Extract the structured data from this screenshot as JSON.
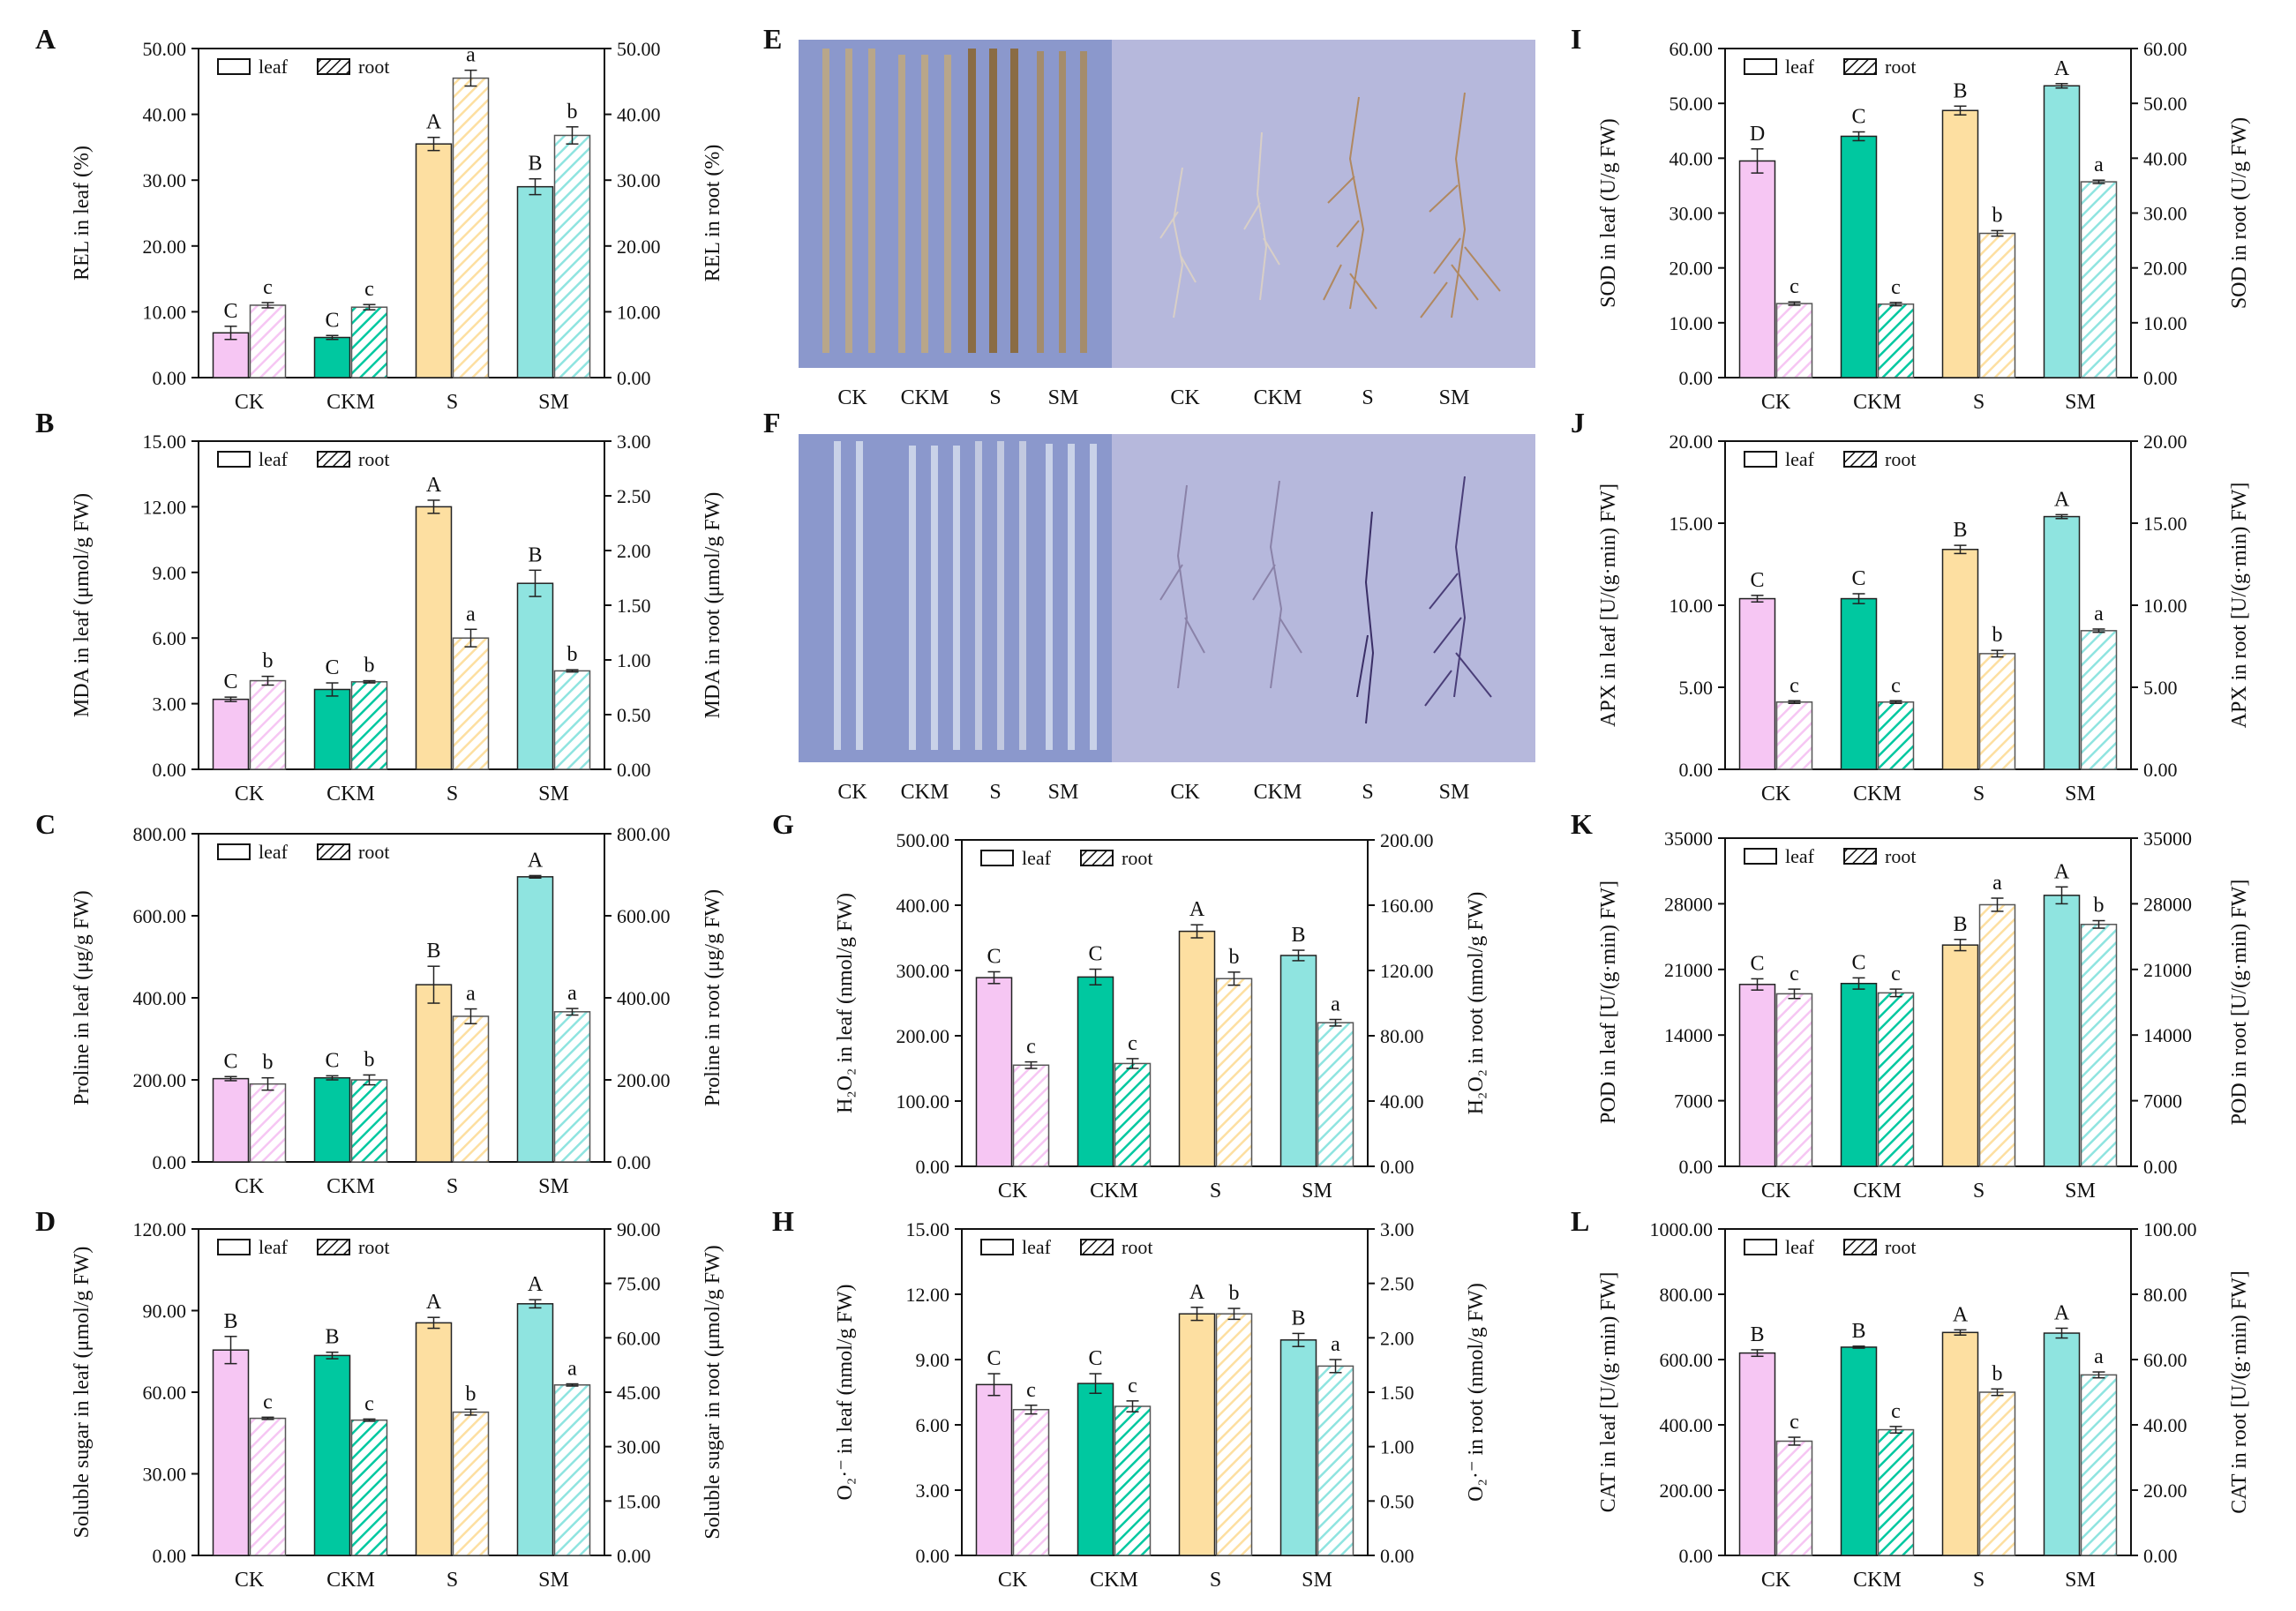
{
  "colors": {
    "CK": "#f6c6f3",
    "CKM": "#00c8a0",
    "S": "#fddfa1",
    "SM": "#8fe4e0",
    "axis": "#111111",
    "photo_bg": "#8b98cc",
    "photo_bg_root": "#b6b8dc"
  },
  "legend": {
    "leaf": "leaf",
    "root": "root"
  },
  "categories": [
    "CK",
    "CKM",
    "S",
    "SM"
  ],
  "chart_data": [
    {
      "panel": "A",
      "type": "bar",
      "ylabel_left": "REL in leaf (%)",
      "ylabel_right": "REL in root (%)",
      "ylim_left": [
        0,
        50
      ],
      "ylim_right": [
        0,
        50
      ],
      "ticks_left": [
        "0.00",
        "10.00",
        "20.00",
        "30.00",
        "40.00",
        "50.00"
      ],
      "ticks_right": [
        "0.00",
        "10.00",
        "20.00",
        "30.00",
        "40.00",
        "50.00"
      ],
      "series": [
        {
          "name": "leaf",
          "values": [
            6.8,
            6.1,
            35.5,
            29.0
          ],
          "errors": [
            1.0,
            0.3,
            1.0,
            1.2
          ],
          "letters": [
            "C",
            "C",
            "A",
            "B"
          ]
        },
        {
          "name": "root",
          "values": [
            11.0,
            10.7,
            45.5,
            36.8
          ],
          "errors": [
            0.4,
            0.4,
            1.2,
            1.3
          ],
          "letters": [
            "c",
            "c",
            "a",
            "b"
          ]
        }
      ]
    },
    {
      "panel": "B",
      "type": "bar",
      "ylabel_left": "MDA in leaf (μmol/g FW)",
      "ylabel_right": "MDA in root (μmol/g FW)",
      "ylim_left": [
        0,
        15
      ],
      "ylim_right": [
        0,
        3
      ],
      "ticks_left": [
        "0.00",
        "3.00",
        "6.00",
        "9.00",
        "12.00",
        "15.00"
      ],
      "ticks_right": [
        "0.00",
        "0.50",
        "1.00",
        "1.50",
        "2.00",
        "2.50",
        "3.00"
      ],
      "series": [
        {
          "name": "leaf",
          "values": [
            3.2,
            3.65,
            12.0,
            8.5
          ],
          "errors": [
            0.1,
            0.3,
            0.3,
            0.6
          ],
          "letters": [
            "C",
            "C",
            "A",
            "B"
          ]
        },
        {
          "name": "root",
          "values": [
            0.81,
            0.8,
            1.2,
            0.9
          ],
          "errors": [
            0.04,
            0.01,
            0.08,
            0.01
          ],
          "letters": [
            "b",
            "b",
            "a",
            "b"
          ]
        }
      ]
    },
    {
      "panel": "C",
      "type": "bar",
      "ylabel_left": "Proline in leaf (μg/g FW)",
      "ylabel_right": "Proline in root (μg/g FW)",
      "ylim_left": [
        0,
        800
      ],
      "ylim_right": [
        0,
        800
      ],
      "ticks_left": [
        "0.00",
        "200.00",
        "400.00",
        "600.00",
        "800.00"
      ],
      "ticks_right": [
        "0.00",
        "200.00",
        "400.00",
        "600.00",
        "800.00"
      ],
      "series": [
        {
          "name": "leaf",
          "values": [
            203,
            205,
            432,
            695
          ],
          "errors": [
            5,
            5,
            45,
            3
          ],
          "letters": [
            "C",
            "C",
            "B",
            "A"
          ]
        },
        {
          "name": "root",
          "values": [
            190,
            200,
            355,
            366
          ],
          "errors": [
            15,
            12,
            18,
            8
          ],
          "letters": [
            "b",
            "b",
            "a",
            "a"
          ]
        }
      ]
    },
    {
      "panel": "D",
      "type": "bar",
      "ylabel_left": "Soluble sugar in leaf (μmol/g FW)",
      "ylabel_right": "Soluble sugar in root (μmol/g FW)",
      "ylim_left": [
        0,
        120
      ],
      "ylim_right": [
        0,
        90
      ],
      "ticks_left": [
        "0.00",
        "30.00",
        "60.00",
        "90.00",
        "120.00"
      ],
      "ticks_right": [
        "0.00",
        "15.00",
        "30.00",
        "45.00",
        "60.00",
        "75.00",
        "90.00"
      ],
      "series": [
        {
          "name": "leaf",
          "values": [
            75.5,
            73.5,
            85.5,
            92.5
          ],
          "errors": [
            5.0,
            1.2,
            2.0,
            1.5
          ],
          "letters": [
            "B",
            "B",
            "A",
            "A"
          ]
        },
        {
          "name": "root",
          "values": [
            37.8,
            37.3,
            39.5,
            47.0
          ],
          "errors": [
            0.3,
            0.3,
            0.8,
            0.3
          ],
          "letters": [
            "c",
            "c",
            "b",
            "a"
          ]
        }
      ]
    },
    {
      "panel": "G",
      "type": "bar",
      "ylabel_left": "H₂O₂ in leaf (nmol/g FW)",
      "ylabel_right": "H₂O₂ in root (nmol/g FW)",
      "ylim_left": [
        0,
        500
      ],
      "ylim_right": [
        0,
        200
      ],
      "ticks_left": [
        "0.00",
        "100.00",
        "200.00",
        "300.00",
        "400.00",
        "500.00"
      ],
      "ticks_right": [
        "0.00",
        "40.00",
        "80.00",
        "120.00",
        "160.00",
        "200.00"
      ],
      "series": [
        {
          "name": "leaf",
          "values": [
            289,
            290,
            360,
            323
          ],
          "errors": [
            9,
            12,
            10,
            8
          ],
          "letters": [
            "C",
            "C",
            "A",
            "B"
          ]
        },
        {
          "name": "root",
          "values": [
            62,
            63,
            115,
            88
          ],
          "errors": [
            2,
            3,
            4,
            2
          ],
          "letters": [
            "c",
            "c",
            "b",
            "a"
          ]
        }
      ]
    },
    {
      "panel": "H",
      "type": "bar",
      "ylabel_left": "O₂·⁻ in leaf (nmol/g FW)",
      "ylabel_right": "O₂·⁻ in root (nmol/g FW)",
      "ylim_left": [
        0,
        15
      ],
      "ylim_right": [
        0,
        3
      ],
      "ticks_left": [
        "0.00",
        "3.00",
        "6.00",
        "9.00",
        "12.00",
        "15.00"
      ],
      "ticks_right": [
        "0.00",
        "0.50",
        "1.00",
        "1.50",
        "2.00",
        "2.50",
        "3.00"
      ],
      "series": [
        {
          "name": "leaf",
          "values": [
            7.85,
            7.9,
            11.1,
            9.9
          ],
          "errors": [
            0.5,
            0.45,
            0.3,
            0.3
          ],
          "letters": [
            "C",
            "C",
            "A",
            "B"
          ]
        },
        {
          "name": "root",
          "values": [
            1.34,
            1.37,
            2.22,
            1.74
          ],
          "errors": [
            0.04,
            0.05,
            0.05,
            0.06
          ],
          "letters": [
            "c",
            "c",
            "b",
            "a"
          ]
        }
      ]
    },
    {
      "panel": "I",
      "type": "bar",
      "ylabel_left": "SOD in leaf (U/g FW)",
      "ylabel_right": "SOD in root (U/g FW)",
      "ylim_left": [
        0,
        60
      ],
      "ylim_right": [
        0,
        60
      ],
      "ticks_left": [
        "0.00",
        "10.00",
        "20.00",
        "30.00",
        "40.00",
        "50.00",
        "60.00"
      ],
      "ticks_right": [
        "0.00",
        "10.00",
        "20.00",
        "30.00",
        "40.00",
        "50.00",
        "60.00"
      ],
      "series": [
        {
          "name": "leaf",
          "values": [
            39.5,
            44.0,
            48.7,
            53.2
          ],
          "errors": [
            2.2,
            0.8,
            0.8,
            0.4
          ],
          "letters": [
            "D",
            "C",
            "B",
            "A"
          ]
        },
        {
          "name": "root",
          "values": [
            13.5,
            13.4,
            26.3,
            35.7
          ],
          "errors": [
            0.3,
            0.3,
            0.5,
            0.3
          ],
          "letters": [
            "c",
            "c",
            "b",
            "a"
          ]
        }
      ]
    },
    {
      "panel": "J",
      "type": "bar",
      "ylabel_left": "APX in leaf [U/(g·min) FW]",
      "ylabel_right": "APX in root [U/(g·min) FW]",
      "ylim_left": [
        0,
        20
      ],
      "ylim_right": [
        0,
        20
      ],
      "ticks_left": [
        "0.00",
        "5.00",
        "10.00",
        "15.00",
        "20.00"
      ],
      "ticks_right": [
        "0.00",
        "5.00",
        "10.00",
        "15.00",
        "20.00"
      ],
      "series": [
        {
          "name": "leaf",
          "values": [
            10.4,
            10.4,
            13.4,
            15.4
          ],
          "errors": [
            0.2,
            0.3,
            0.25,
            0.12
          ],
          "letters": [
            "C",
            "C",
            "B",
            "A"
          ]
        },
        {
          "name": "root",
          "values": [
            4.1,
            4.1,
            7.05,
            8.45
          ],
          "errors": [
            0.08,
            0.08,
            0.2,
            0.1
          ],
          "letters": [
            "c",
            "c",
            "b",
            "a"
          ]
        }
      ]
    },
    {
      "panel": "K",
      "type": "bar",
      "ylabel_left": "POD in leaf [U/(g·min) FW]",
      "ylabel_right": "POD in root [U/(g·min) FW]",
      "ylim_left": [
        0,
        35000
      ],
      "ylim_right": [
        0,
        35000
      ],
      "ticks_left": [
        "0.00",
        "7000",
        "14000",
        "21000",
        "28000",
        "35000"
      ],
      "ticks_right": [
        "0.00",
        "7000",
        "14000",
        "21000",
        "28000",
        "35000"
      ],
      "series": [
        {
          "name": "leaf",
          "values": [
            19400,
            19500,
            23600,
            28900
          ],
          "errors": [
            600,
            600,
            600,
            900
          ],
          "letters": [
            "C",
            "C",
            "B",
            "A"
          ]
        },
        {
          "name": "root",
          "values": [
            18400,
            18500,
            27900,
            25800
          ],
          "errors": [
            500,
            400,
            700,
            400
          ],
          "letters": [
            "c",
            "c",
            "a",
            "b"
          ]
        }
      ]
    },
    {
      "panel": "L",
      "type": "bar",
      "ylabel_left": "CAT in leaf [U/(g·min) FW]",
      "ylabel_right": "CAT in root [U/(g·min) FW]",
      "ylim_left": [
        0,
        1000
      ],
      "ylim_right": [
        0,
        100
      ],
      "ticks_left": [
        "0.00",
        "200.00",
        "400.00",
        "600.00",
        "800.00",
        "1000.00"
      ],
      "ticks_right": [
        "0.00",
        "20.00",
        "40.00",
        "60.00",
        "80.00",
        "100.00"
      ],
      "series": [
        {
          "name": "leaf",
          "values": [
            620,
            638,
            683,
            681
          ],
          "errors": [
            10,
            3,
            8,
            15
          ],
          "letters": [
            "B",
            "B",
            "A",
            "A"
          ]
        },
        {
          "name": "root",
          "values": [
            35.0,
            38.5,
            50.0,
            55.3
          ],
          "errors": [
            1.2,
            1.0,
            1.0,
            0.9
          ],
          "letters": [
            "c",
            "c",
            "b",
            "a"
          ]
        }
      ]
    }
  ],
  "photos": [
    {
      "panel": "E",
      "leaf_labels": [
        "CK",
        "CKM",
        "S",
        "SM"
      ],
      "root_labels": [
        "CK",
        "CKM",
        "S",
        "SM"
      ]
    },
    {
      "panel": "F",
      "leaf_labels": [
        "CK",
        "CKM",
        "S",
        "SM"
      ],
      "root_labels": [
        "CK",
        "CKM",
        "S",
        "SM"
      ]
    }
  ]
}
